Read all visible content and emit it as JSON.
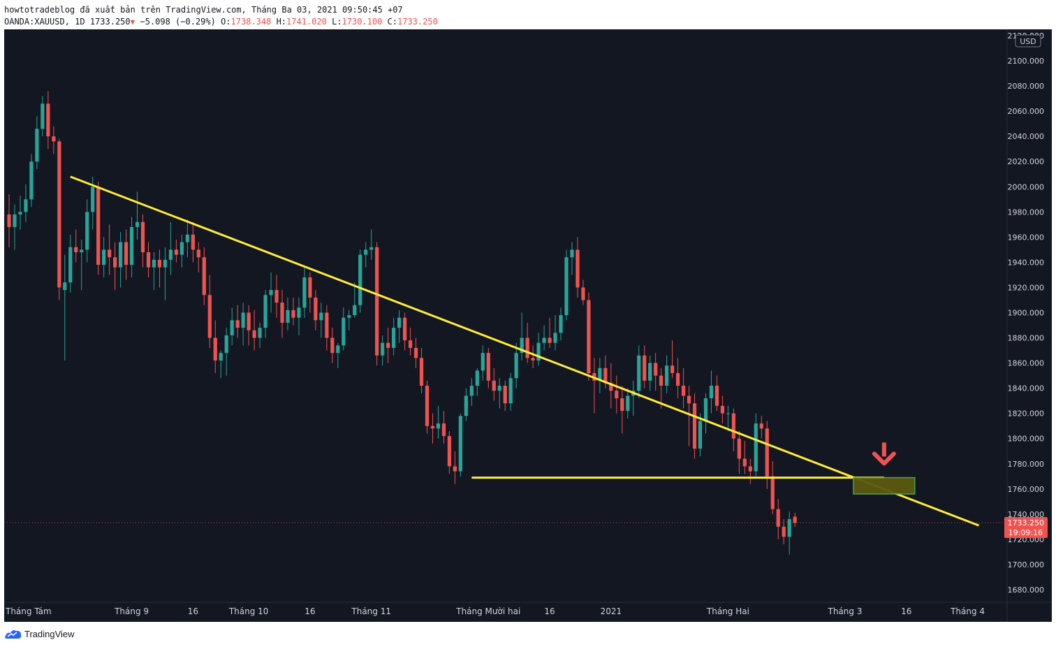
{
  "header": {
    "publisher_line": "howtotradeblog đã xuất bản trên TradingView.com, Tháng Ba 03, 2021 09:50:45 +07",
    "symbol": "OANDA:XAUUSD, 1D",
    "last": "1733.250",
    "change": "−5.098 (−0.29%)",
    "o_label": "O:",
    "o_value": "1738.348",
    "h_label": "H:",
    "h_value": "1741.020",
    "l_label": "L:",
    "l_value": "1730.100",
    "c_label": "C:",
    "c_value": "1733.250"
  },
  "colors": {
    "background": "#131722",
    "up": "#26a69a",
    "down": "#ef5350",
    "trendline": "#ffeb3b",
    "zone_fill": "#5a5a10",
    "zone_border": "#4caf50",
    "arrow": "#ef5350",
    "axis_text": "#d1d4dc",
    "price_badge": "#ef5350"
  },
  "footer": {
    "brand": "TradingView",
    "logo_icon": "tradingview-logo-icon"
  },
  "chart_data": {
    "type": "candlestick",
    "symbol": "OANDA:XAUUSD",
    "interval": "1D",
    "currency": "USD",
    "ylim": [
      1670,
      2125
    ],
    "yticks": [
      1680,
      1700,
      1720,
      1740,
      1760,
      1780,
      1800,
      1820,
      1840,
      1860,
      1880,
      1900,
      1920,
      1940,
      1960,
      1980,
      2000,
      2020,
      2040,
      2060,
      2080,
      2100,
      2120
    ],
    "xticks": [
      {
        "label": "Tháng Tám",
        "index": 0
      },
      {
        "label": "Tháng 9",
        "index": 22
      },
      {
        "label": "16",
        "index": 33
      },
      {
        "label": "Tháng 10",
        "index": 43
      },
      {
        "label": "16",
        "index": 54
      },
      {
        "label": "Tháng 11",
        "index": 65
      },
      {
        "label": "Tháng Mười hai",
        "index": 86
      },
      {
        "label": "16",
        "index": 97
      },
      {
        "label": "2021",
        "index": 108
      },
      {
        "label": "Tháng Hai",
        "index": 129
      },
      {
        "label": "Tháng 3",
        "index": 150
      },
      {
        "label": "16",
        "index": 161
      },
      {
        "label": "Tháng 4",
        "index": 172
      }
    ],
    "last_price_label": "1733.250",
    "countdown_label": "19:09:16",
    "last_price": 1733.25,
    "candles": [
      [
        1978,
        1994,
        1952,
        1968
      ],
      [
        1968,
        1986,
        1950,
        1978
      ],
      [
        1978,
        1993,
        1966,
        1980
      ],
      [
        1980,
        2002,
        1972,
        1990
      ],
      [
        1990,
        2026,
        1984,
        2020
      ],
      [
        2020,
        2056,
        2014,
        2046
      ],
      [
        2046,
        2072,
        2040,
        2066
      ],
      [
        2066,
        2076,
        2030,
        2040
      ],
      [
        2040,
        2048,
        2026,
        2036
      ],
      [
        2036,
        2038,
        1910,
        1920
      ],
      [
        1918,
        1946,
        1862,
        1924
      ],
      [
        1924,
        1962,
        1916,
        1952
      ],
      [
        1952,
        1966,
        1940,
        1948
      ],
      [
        1948,
        1958,
        1918,
        1950
      ],
      [
        1950,
        1990,
        1940,
        1980
      ],
      [
        1980,
        2008,
        1966,
        2000
      ],
      [
        2000,
        2004,
        1930,
        1938
      ],
      [
        1938,
        1960,
        1928,
        1950
      ],
      [
        1950,
        1970,
        1930,
        1944
      ],
      [
        1944,
        1956,
        1918,
        1936
      ],
      [
        1936,
        1964,
        1920,
        1956
      ],
      [
        1956,
        1966,
        1926,
        1938
      ],
      [
        1938,
        1976,
        1928,
        1968
      ],
      [
        1968,
        1996,
        1958,
        1972
      ],
      [
        1972,
        1978,
        1936,
        1948
      ],
      [
        1948,
        1956,
        1928,
        1936
      ],
      [
        1936,
        1948,
        1918,
        1942
      ],
      [
        1942,
        1950,
        1920,
        1936
      ],
      [
        1936,
        1952,
        1910,
        1942
      ],
      [
        1942,
        1972,
        1930,
        1950
      ],
      [
        1950,
        1958,
        1940,
        1946
      ],
      [
        1946,
        1962,
        1936,
        1956
      ],
      [
        1956,
        1974,
        1944,
        1962
      ],
      [
        1962,
        1972,
        1940,
        1950
      ],
      [
        1950,
        1956,
        1932,
        1944
      ],
      [
        1944,
        1952,
        1906,
        1914
      ],
      [
        1914,
        1930,
        1872,
        1880
      ],
      [
        1880,
        1894,
        1852,
        1862
      ],
      [
        1862,
        1870,
        1848,
        1868
      ],
      [
        1868,
        1888,
        1850,
        1882
      ],
      [
        1882,
        1904,
        1874,
        1894
      ],
      [
        1894,
        1906,
        1880,
        1888
      ],
      [
        1888,
        1908,
        1874,
        1900
      ],
      [
        1900,
        1906,
        1874,
        1886
      ],
      [
        1886,
        1902,
        1870,
        1880
      ],
      [
        1880,
        1892,
        1872,
        1888
      ],
      [
        1888,
        1918,
        1880,
        1914
      ],
      [
        1914,
        1932,
        1900,
        1918
      ],
      [
        1918,
        1930,
        1896,
        1908
      ],
      [
        1908,
        1918,
        1880,
        1892
      ],
      [
        1892,
        1912,
        1886,
        1902
      ],
      [
        1902,
        1912,
        1890,
        1896
      ],
      [
        1896,
        1912,
        1882,
        1904
      ],
      [
        1904,
        1936,
        1896,
        1928
      ],
      [
        1928,
        1932,
        1900,
        1912
      ],
      [
        1912,
        1918,
        1886,
        1894
      ],
      [
        1894,
        1908,
        1880,
        1900
      ],
      [
        1900,
        1906,
        1870,
        1880
      ],
      [
        1880,
        1888,
        1860,
        1868
      ],
      [
        1868,
        1876,
        1856,
        1874
      ],
      [
        1874,
        1904,
        1870,
        1896
      ],
      [
        1896,
        1902,
        1886,
        1898
      ],
      [
        1898,
        1924,
        1896,
        1906
      ],
      [
        1906,
        1950,
        1900,
        1946
      ],
      [
        1946,
        1956,
        1936,
        1950
      ],
      [
        1950,
        1966,
        1942,
        1952
      ],
      [
        1952,
        1956,
        1858,
        1866
      ],
      [
        1866,
        1882,
        1858,
        1876
      ],
      [
        1876,
        1888,
        1860,
        1872
      ],
      [
        1872,
        1896,
        1866,
        1888
      ],
      [
        1888,
        1902,
        1876,
        1896
      ],
      [
        1896,
        1900,
        1870,
        1878
      ],
      [
        1878,
        1888,
        1866,
        1872
      ],
      [
        1872,
        1880,
        1856,
        1864
      ],
      [
        1864,
        1872,
        1836,
        1842
      ],
      [
        1842,
        1846,
        1804,
        1810
      ],
      [
        1810,
        1820,
        1796,
        1808
      ],
      [
        1808,
        1826,
        1800,
        1812
      ],
      [
        1812,
        1822,
        1796,
        1802
      ],
      [
        1802,
        1806,
        1772,
        1778
      ],
      [
        1778,
        1790,
        1764,
        1774
      ],
      [
        1774,
        1820,
        1770,
        1818
      ],
      [
        1818,
        1840,
        1814,
        1834
      ],
      [
        1834,
        1848,
        1826,
        1842
      ],
      [
        1842,
        1856,
        1834,
        1854
      ],
      [
        1854,
        1874,
        1846,
        1868
      ],
      [
        1868,
        1872,
        1840,
        1846
      ],
      [
        1846,
        1856,
        1830,
        1838
      ],
      [
        1838,
        1848,
        1824,
        1842
      ],
      [
        1842,
        1846,
        1822,
        1828
      ],
      [
        1828,
        1852,
        1822,
        1848
      ],
      [
        1848,
        1876,
        1840,
        1868
      ],
      [
        1868,
        1900,
        1862,
        1880
      ],
      [
        1880,
        1892,
        1860,
        1864
      ],
      [
        1864,
        1874,
        1856,
        1862
      ],
      [
        1862,
        1884,
        1858,
        1876
      ],
      [
        1876,
        1890,
        1870,
        1880
      ],
      [
        1880,
        1896,
        1872,
        1876
      ],
      [
        1876,
        1898,
        1870,
        1884
      ],
      [
        1884,
        1904,
        1878,
        1898
      ],
      [
        1898,
        1950,
        1894,
        1944
      ],
      [
        1944,
        1956,
        1930,
        1950
      ],
      [
        1950,
        1960,
        1912,
        1920
      ],
      [
        1920,
        1926,
        1906,
        1910
      ],
      [
        1910,
        1916,
        1846,
        1852
      ],
      [
        1852,
        1864,
        1820,
        1846
      ],
      [
        1846,
        1864,
        1836,
        1856
      ],
      [
        1856,
        1866,
        1840,
        1844
      ],
      [
        1844,
        1860,
        1824,
        1838
      ],
      [
        1838,
        1850,
        1820,
        1832
      ],
      [
        1832,
        1842,
        1804,
        1822
      ],
      [
        1822,
        1840,
        1816,
        1834
      ],
      [
        1834,
        1846,
        1818,
        1838
      ],
      [
        1838,
        1874,
        1832,
        1866
      ],
      [
        1866,
        1874,
        1840,
        1846
      ],
      [
        1846,
        1866,
        1838,
        1860
      ],
      [
        1860,
        1868,
        1838,
        1850
      ],
      [
        1850,
        1856,
        1824,
        1842
      ],
      [
        1842,
        1866,
        1836,
        1858
      ],
      [
        1858,
        1878,
        1848,
        1852
      ],
      [
        1852,
        1864,
        1832,
        1842
      ],
      [
        1842,
        1856,
        1824,
        1834
      ],
      [
        1834,
        1842,
        1794,
        1828
      ],
      [
        1828,
        1836,
        1784,
        1792
      ],
      [
        1792,
        1820,
        1786,
        1814
      ],
      [
        1814,
        1836,
        1804,
        1832
      ],
      [
        1832,
        1854,
        1820,
        1842
      ],
      [
        1842,
        1850,
        1822,
        1826
      ],
      [
        1826,
        1834,
        1812,
        1820
      ],
      [
        1820,
        1826,
        1806,
        1820
      ],
      [
        1820,
        1824,
        1790,
        1800
      ],
      [
        1800,
        1806,
        1772,
        1784
      ],
      [
        1784,
        1798,
        1772,
        1778
      ],
      [
        1778,
        1784,
        1764,
        1774
      ],
      [
        1774,
        1820,
        1770,
        1812
      ],
      [
        1812,
        1818,
        1800,
        1808
      ],
      [
        1808,
        1814,
        1760,
        1770
      ],
      [
        1770,
        1782,
        1740,
        1744
      ],
      [
        1744,
        1752,
        1720,
        1730
      ],
      [
        1730,
        1736,
        1716,
        1722
      ],
      [
        1722,
        1742,
        1708,
        1736
      ],
      [
        1738,
        1741,
        1730,
        1733
      ]
    ],
    "annotations": [
      {
        "type": "trendline",
        "label": "",
        "from": {
          "index": 11,
          "price": 2008
        },
        "to": {
          "index": 174,
          "price": 1731
        }
      },
      {
        "type": "horizontal-line",
        "label": "",
        "from": {
          "index": 83,
          "price": 1769
        },
        "to": {
          "index": 157,
          "price": 1769
        }
      },
      {
        "type": "zone",
        "label": "",
        "from": {
          "index": 151.5,
          "price": 1769
        },
        "to": {
          "index": 162.5,
          "price": 1756
        }
      },
      {
        "type": "arrow-down",
        "label": "",
        "index": 157,
        "price": 1778
      }
    ]
  }
}
